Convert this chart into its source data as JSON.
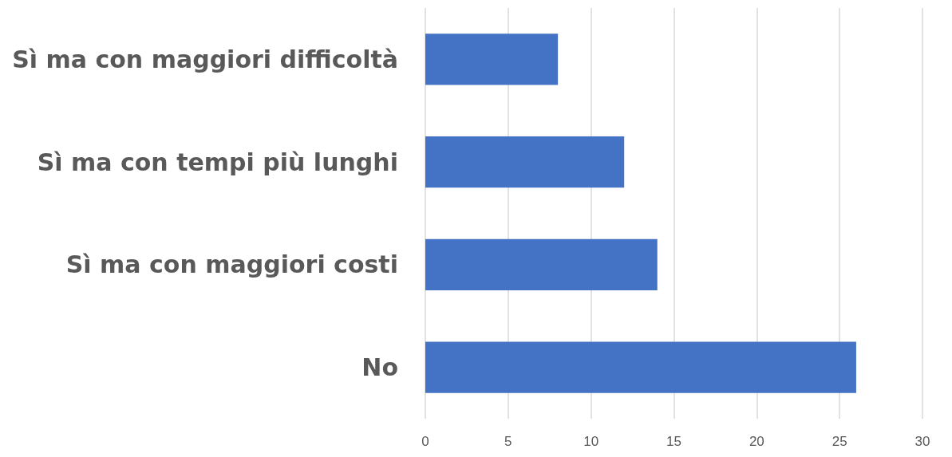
{
  "chart_data": {
    "type": "bar",
    "orientation": "horizontal",
    "categories": [
      "Sì ma con maggiori difficoltà",
      "Sì ma con tempi più lunghi",
      "Sì ma con maggiori costi",
      "No"
    ],
    "values": [
      8,
      12,
      14,
      26
    ],
    "color": "#4472c4",
    "xlim": [
      0,
      30
    ],
    "xticks": [
      0,
      5,
      10,
      15,
      20,
      25,
      30
    ],
    "grid": "x"
  }
}
